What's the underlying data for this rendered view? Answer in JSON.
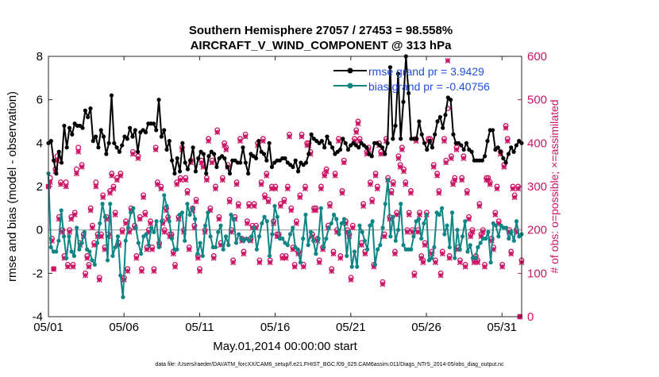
{
  "chart_data": {
    "type": "line",
    "title_line1": "Southern Hemisphere 27057 / 27453 = 98.558%",
    "title_line2": "AIRCRAFT_V_WIND_COMPONENT @ 313 hPa",
    "xlabel": "May.01,2014 00:00:00 start",
    "ylabel_left": "rmse and bias (model - observation)",
    "ylabel_right": "# of obs: o=possible; ×=assimilated",
    "footer": "data file: /Users/raeder/DAI/ATM_forcXX/CAM6_setup/f.e21.FHIST_BGC.f09_025.CAM6assim.011/Diags_NTrS_2014-05/obs_diag_output.nc",
    "xlim": [
      1,
      32.3
    ],
    "ylim_left": [
      -4,
      8
    ],
    "ylim_right": [
      0,
      600
    ],
    "x_ticks": [
      1,
      6,
      11,
      16,
      21,
      26,
      31
    ],
    "x_tick_labels": [
      "05/01",
      "05/06",
      "05/11",
      "05/16",
      "05/21",
      "05/26",
      "05/31"
    ],
    "y_ticks_left": [
      "-4",
      "-2",
      "0",
      "2",
      "4",
      "6",
      "8"
    ],
    "y_ticks_right": [
      "0",
      "100",
      "200",
      "300",
      "400",
      "500",
      "600"
    ],
    "legend": [
      {
        "label": "rmse grand pr = 3.9429",
        "color": "#000000"
      },
      {
        "label": "bias grand pr = -0.40756",
        "color": "#0f8585"
      }
    ],
    "colors": {
      "rmse": "#000000",
      "bias": "#0f8585",
      "obs": "#cc1466",
      "legend_text": "#1f4fe0",
      "zero_line": "#b0b0b0"
    },
    "series": [
      {
        "name": "rmse",
        "values": [
          4.0,
          4.1,
          3.2,
          2.6,
          3.6,
          3.1,
          4.8,
          3.8,
          4.7,
          4.4,
          4.9,
          4.8,
          4.8,
          4.7,
          5.5,
          5.2,
          5.6,
          4.1,
          4.3,
          3.8,
          4.6,
          4.3,
          3.5,
          4.0,
          6.2,
          4.0,
          3.8,
          3.6,
          3.9,
          4.3,
          4.2,
          4.7,
          4.3,
          4.6,
          3.6,
          4.5,
          4.6,
          4.5,
          4.9,
          4.9,
          4.9,
          4.6,
          6.0,
          4.3,
          4.6,
          3.7,
          4.1,
          3.2,
          2.6,
          3.3,
          2.7,
          4.0,
          3.1,
          2.8,
          3.2,
          3.8,
          2.7,
          3.3,
          3.6,
          3.5,
          2.6,
          3.4,
          3.6,
          3.5,
          2.9,
          3.3,
          3.4,
          3.3,
          2.9,
          2.6,
          3.2,
          3.2,
          3.1,
          3.1,
          3.8,
          3.1,
          2.6,
          3.5,
          3.4,
          3.3,
          4.1,
          3.6,
          3.5,
          3.2,
          4.0,
          2.9,
          3.1,
          3.2,
          3.2,
          3.3,
          3.3,
          3.1,
          3.0,
          2.9,
          3.2,
          2.7,
          3.1,
          3.0,
          3.1,
          3.5,
          4.4,
          4.2,
          4.1,
          4.0,
          4.1,
          3.8,
          4.3,
          4.0,
          3.8,
          3.5,
          3.6,
          3.7,
          4.2,
          4.0,
          3.7,
          3.9,
          4.0,
          3.9,
          3.8,
          4.0,
          3.9,
          3.8,
          3.5,
          3.4,
          4.0,
          4.0,
          3.9,
          3.8,
          3.5,
          4.0,
          7.5,
          4.2,
          4.8,
          7.2,
          4.2,
          5.9,
          8.0,
          6.3,
          4.2,
          4.2,
          4.2,
          5.0,
          4.4,
          4.0,
          3.7,
          4.1,
          3.8,
          4.4,
          5.0,
          5.2,
          4.7,
          5.3,
          6.1,
          6.0,
          4.4,
          4.0,
          4.0,
          3.9,
          3.7,
          4.0,
          3.7,
          3.6,
          3.2,
          3.2,
          3.2,
          3.2,
          3.4,
          4.1,
          4.6,
          4.6,
          3.7,
          3.8,
          3.6,
          3.3,
          3.1,
          3.5,
          3.8,
          3.6,
          3.9,
          4.1,
          4.0
        ]
      },
      {
        "name": "bias",
        "values": [
          2.6,
          -0.8,
          -1.0,
          -1.0,
          -0.5,
          0.9,
          -0.3,
          -1.3,
          -0.3,
          -1.0,
          -1.2,
          0.1,
          -0.9,
          -0.6,
          -0.1,
          -0.9,
          -1.0,
          -1.4,
          -1.6,
          -0.6,
          0.3,
          1.2,
          0.6,
          -1.4,
          1.2,
          -1.2,
          -0.8,
          -0.3,
          -2.1,
          -3.1,
          -0.5,
          0.1,
          0.8,
          1.0,
          0.1,
          -0.6,
          -1.1,
          -0.3,
          -0.2,
          -0.7,
          0.1,
          -0.1,
          0.4,
          -0.8,
          0.4,
          1.6,
          1.1,
          0.4,
          -0.4,
          -0.9,
          -0.9,
          0.7,
          0.8,
          -0.5,
          1.2,
          0.7,
          1.0,
          0.5,
          -1.1,
          -0.6,
          -1.2,
          0.2,
          0.8,
          -0.3,
          -0.8,
          -0.8,
          -0.1,
          0.2,
          -0.9,
          -0.3,
          -0.7,
          0.7,
          0.5,
          -0.6,
          -0.2,
          -0.4,
          -0.5,
          -0.4,
          -0.5,
          -0.3,
          0.1,
          -0.9,
          -0.3,
          0.3,
          0.6,
          0.4,
          -1.2,
          -0.2,
          1.1,
          0.6,
          -0.4,
          -0.4,
          -0.6,
          -0.7,
          -0.2,
          0.1,
          -0.8,
          -0.9,
          -1.5,
          -0.4,
          0.7,
          -0.7,
          -0.1,
          -0.5,
          -1.1,
          -0.4,
          1.0,
          -0.8,
          -0.4,
          0.1,
          0.3,
          0.7,
          0.5,
          -0.2,
          0.3,
          0.5,
          -1.2,
          -0.1,
          -1.7,
          -1.0,
          -1.7,
          0.2,
          -0.1,
          -0.5,
          -0.9,
          0.2,
          0.4,
          -1.6,
          -0.9,
          -0.7,
          0.1,
          1.2,
          2.3,
          -0.3,
          0.6,
          -0.5,
          0.0,
          1.2,
          -0.7,
          -0.9,
          -0.9,
          -0.9,
          -0.3,
          0.4,
          0.5,
          -0.4,
          0.3,
          0.7,
          -1.4,
          -1.3,
          -0.8,
          0.8,
          0.7,
          1.0,
          -0.2,
          0.2,
          -0.8,
          0.8,
          -1.3,
          0.0,
          -0.9,
          -0.3,
          0.4,
          -1.0,
          -0.7,
          -1.3,
          -1.3,
          -0.8,
          -0.6,
          -0.4,
          -0.4,
          -0.1,
          -1.5,
          0.3,
          0.2,
          -0.3,
          0.2,
          0.1,
          0.1,
          -0.4,
          -0.1,
          -0.5,
          0.4,
          -0.3,
          -0.2
        ]
      },
      {
        "name": "obs_possible",
        "values": [
          300,
          320,
          180,
          110,
          340,
          370,
          230,
          310,
          200,
          140,
          310,
          120,
          200,
          230,
          120,
          240,
          340,
          390,
          170,
          350,
          190,
          100,
          140,
          120,
          250,
          210,
          170,
          310,
          190,
          90,
          190,
          280,
          160,
          230,
          190,
          290,
          330,
          300,
          240,
          320,
          170,
          330,
          200,
          90,
          220,
          110,
          200,
          250,
          380,
          210,
          140,
          370,
          230,
          110,
          280,
          240,
          160,
          200,
          220,
          160,
          110,
          390,
          310,
          170,
          300,
          220,
          200,
          250,
          230,
          190,
          190,
          150,
          120,
          310,
          230,
          320,
          390,
          200,
          320,
          290,
          160,
          360,
          250,
          210,
          270,
          140,
          110,
          360,
          350,
          200,
          320,
          410,
          250,
          360,
          140,
          300,
          430,
          230,
          170,
          320,
          400,
          390,
          350,
          270,
          200,
          130,
          230,
          310,
          260,
          410,
          180,
          150,
          420,
          220,
          260,
          180,
          210,
          260,
          210,
          400,
          130,
          310,
          410,
          280,
          330,
          270,
          130,
          300,
          220,
          300,
          190,
          190,
          260,
          140,
          270,
          140,
          300,
          420,
          250,
          160,
          120,
          220,
          150,
          280,
          420,
          120,
          300,
          400,
          400,
          380,
          190,
          250,
          250,
          180,
          130,
          300,
          160,
          330,
          340,
          210,
          260,
          110,
          150,
          330,
          200,
          410,
          140,
          290,
          360,
          220,
          200,
          190,
          90,
          210,
          410,
          430,
          450,
          410,
          170,
          260,
          150,
          380,
          390,
          310,
          270,
          120,
          330,
          300,
          400,
          380,
          80,
          190,
          410,
          320,
          230,
          290,
          310,
          150,
          240,
          370,
          350,
          390,
          340,
          310,
          200,
          240,
          290,
          200,
          100,
          410,
          200,
          240,
          140,
          130,
          170,
          240,
          410,
          410,
          150,
          350,
          130,
          330,
          290,
          100,
          150,
          410,
          360,
          480,
          140,
          370,
          310,
          320,
          390,
          160,
          130,
          320,
          370,
          120,
          290,
          230,
          190,
          200,
          130,
          140,
          130,
          260,
          190,
          200,
          120,
          320,
          320,
          310,
          180,
          160,
          240,
          300,
          220,
          380,
          120,
          350,
          440,
          410,
          200,
          150,
          300,
          280,
          200,
          300,
          0,
          130
        ]
      },
      {
        "name": "obs_assimilated",
        "values": [
          300,
          310,
          175,
          110,
          335,
          360,
          225,
          305,
          195,
          135,
          300,
          115,
          195,
          225,
          115,
          235,
          330,
          380,
          165,
          345,
          185,
          95,
          135,
          115,
          245,
          205,
          165,
          300,
          185,
          85,
          185,
          275,
          155,
          225,
          185,
          285,
          325,
          295,
          235,
          315,
          165,
          325,
          195,
          85,
          215,
          105,
          195,
          245,
          375,
          205,
          135,
          365,
          225,
          105,
          275,
          235,
          155,
          195,
          215,
          155,
          105,
          385,
          305,
          165,
          295,
          215,
          195,
          245,
          225,
          185,
          185,
          145,
          115,
          305,
          225,
          315,
          385,
          195,
          315,
          285,
          155,
          355,
          245,
          205,
          265,
          135,
          105,
          355,
          345,
          195,
          315,
          405,
          245,
          355,
          135,
          295,
          425,
          225,
          165,
          315,
          395,
          385,
          345,
          265,
          195,
          125,
          225,
          305,
          255,
          405,
          175,
          145,
          415,
          215,
          255,
          175,
          205,
          255,
          205,
          395,
          125,
          305,
          405,
          275,
          325,
          265,
          125,
          295,
          215,
          295,
          185,
          185,
          255,
          135,
          265,
          135,
          295,
          415,
          245,
          155,
          115,
          215,
          145,
          275,
          415,
          115,
          295,
          395,
          395,
          375,
          185,
          245,
          245,
          175,
          125,
          295,
          155,
          325,
          335,
          205,
          255,
          105,
          145,
          325,
          195,
          405,
          135,
          285,
          355,
          215,
          195,
          185,
          85,
          205,
          405,
          425,
          445,
          405,
          165,
          255,
          145,
          375,
          385,
          305,
          265,
          115,
          325,
          295,
          395,
          375,
          75,
          185,
          405,
          315,
          225,
          285,
          305,
          145,
          235,
          365,
          345,
          385,
          335,
          305,
          195,
          235,
          285,
          195,
          95,
          405,
          195,
          235,
          135,
          125,
          165,
          235,
          405,
          405,
          145,
          345,
          125,
          325,
          285,
          95,
          145,
          405,
          355,
          590,
          135,
          365,
          305,
          315,
          385,
          155,
          125,
          315,
          365,
          115,
          285,
          225,
          185,
          195,
          125,
          135,
          125,
          255,
          185,
          195,
          115,
          315,
          315,
          305,
          175,
          155,
          235,
          295,
          215,
          375,
          115,
          345,
          435,
          405,
          195,
          145,
          295,
          275,
          195,
          295,
          0,
          125
        ]
      }
    ]
  }
}
